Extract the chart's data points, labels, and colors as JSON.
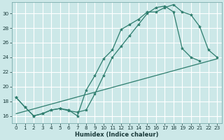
{
  "bg_color": "#cce8e8",
  "grid_color": "#ffffff",
  "line_color": "#2e7d6e",
  "xlabel": "Humidex (Indice chaleur)",
  "ylim": [
    15.0,
    31.5
  ],
  "xlim": [
    -0.5,
    23.5
  ],
  "yticks": [
    16,
    18,
    20,
    22,
    24,
    26,
    28,
    30
  ],
  "xticks": [
    0,
    1,
    2,
    3,
    4,
    5,
    6,
    7,
    8,
    9,
    10,
    11,
    12,
    13,
    14,
    15,
    16,
    17,
    18,
    19,
    20,
    21,
    22,
    23
  ],
  "curve1_x": [
    0,
    1,
    2,
    3,
    4,
    5,
    6,
    7,
    8,
    9,
    10,
    11,
    12,
    13,
    14,
    15,
    16,
    17,
    18,
    19,
    20,
    21,
    22,
    23
  ],
  "curve1_y": [
    18.5,
    17.2,
    16.0,
    16.3,
    16.8,
    17.0,
    16.8,
    16.0,
    19.5,
    21.5,
    23.8,
    25.0,
    27.8,
    28.5,
    29.2,
    30.2,
    30.2,
    30.8,
    31.2,
    30.2,
    29.8,
    28.2,
    25.0,
    24.0
  ],
  "curve2_x": [
    0,
    1,
    2,
    3,
    4,
    5,
    6,
    7,
    8,
    9,
    10,
    11,
    12,
    13,
    14,
    15,
    16,
    17,
    18,
    19,
    20,
    21
  ],
  "curve2_y": [
    18.5,
    17.2,
    16.0,
    16.3,
    16.8,
    17.0,
    16.7,
    16.5,
    16.8,
    19.0,
    21.5,
    24.0,
    25.5,
    27.0,
    28.5,
    30.0,
    30.8,
    31.0,
    30.2,
    25.2,
    24.0,
    23.5
  ],
  "curve3_x": [
    0,
    23
  ],
  "curve3_y": [
    16.3,
    23.8
  ]
}
